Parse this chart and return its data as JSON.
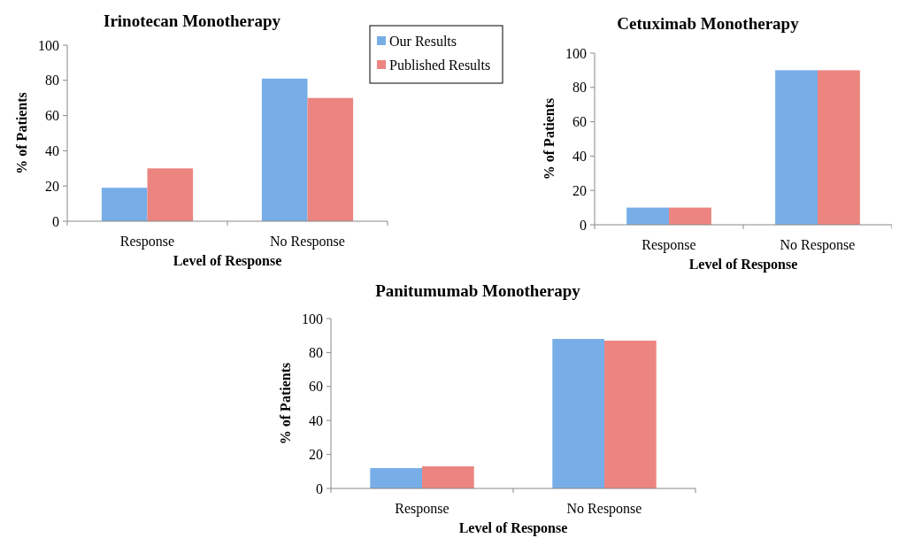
{
  "chart_data": [
    {
      "type": "bar",
      "title": "Irinotecan Monotherapy",
      "xlabel": "Level of Response",
      "ylabel": "% of Patients",
      "categories": [
        "Response",
        "No Response"
      ],
      "series": [
        {
          "name": "Our Results",
          "color": "#78aee8",
          "values": [
            19,
            81
          ]
        },
        {
          "name": "Published Results",
          "color": "#ec8580",
          "values": [
            30,
            70
          ]
        }
      ],
      "ylim": [
        0,
        100
      ],
      "yticks": [
        0,
        20,
        40,
        60,
        80,
        100
      ],
      "grid": false,
      "legend": "top right"
    },
    {
      "type": "bar",
      "title": "Cetuximab Monotherapy",
      "xlabel": "Level of Response",
      "ylabel": "% of Patients",
      "categories": [
        "Response",
        "No Response"
      ],
      "series": [
        {
          "color": "#78aee8",
          "values": [
            10,
            90
          ]
        },
        {
          "color": "#ec8580",
          "values": [
            10,
            90
          ]
        }
      ],
      "ylim": [
        0,
        100
      ],
      "yticks": [
        0,
        20,
        40,
        60,
        80,
        100
      ],
      "grid": false
    },
    {
      "type": "bar",
      "title": "Panitumumab Monotherapy",
      "xlabel": "Level of Response",
      "ylabel": "% of Patients",
      "categories": [
        "Response",
        "No Response"
      ],
      "series": [
        {
          "color": "#78aee8",
          "values": [
            12,
            88
          ]
        },
        {
          "color": "#ec8580",
          "values": [
            13,
            87
          ]
        }
      ],
      "ylim": [
        0,
        100
      ],
      "yticks": [
        0,
        20,
        40,
        60,
        80,
        100
      ],
      "grid": false
    }
  ]
}
